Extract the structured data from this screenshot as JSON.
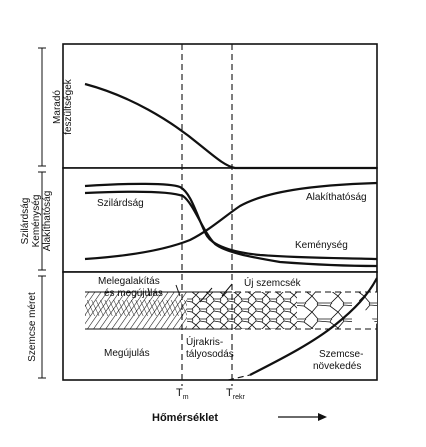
{
  "y_labels": {
    "residual_line1": "Maradó",
    "residual_line2": "feszültségek",
    "props_line1": "Szilárdság",
    "props_line2": "Keménység",
    "props_line3": "Alakíthatóság",
    "grain_size": "Szemcse méret"
  },
  "curve_labels": {
    "strength": "Szilárdság",
    "ductility": "Alakíthatóság",
    "hardness": "Keménység"
  },
  "region_labels": {
    "hot_forming_line1": "Melegalakítás",
    "hot_forming_line2": "és megújulás",
    "new_grains": "Új szemcsék",
    "recovery": "Megújulás",
    "recryst_line1": "Újrakris-",
    "recryst_line2": "tályosodás",
    "grain_growth_line1": "Szemcse-",
    "grain_growth_line2": "növekedés"
  },
  "x_ticks": {
    "tm_main": "T",
    "tm_sub": "m",
    "trekr_main": "T",
    "trekr_sub": "rekr"
  },
  "x_axis_title": "Hőmérséklet"
}
